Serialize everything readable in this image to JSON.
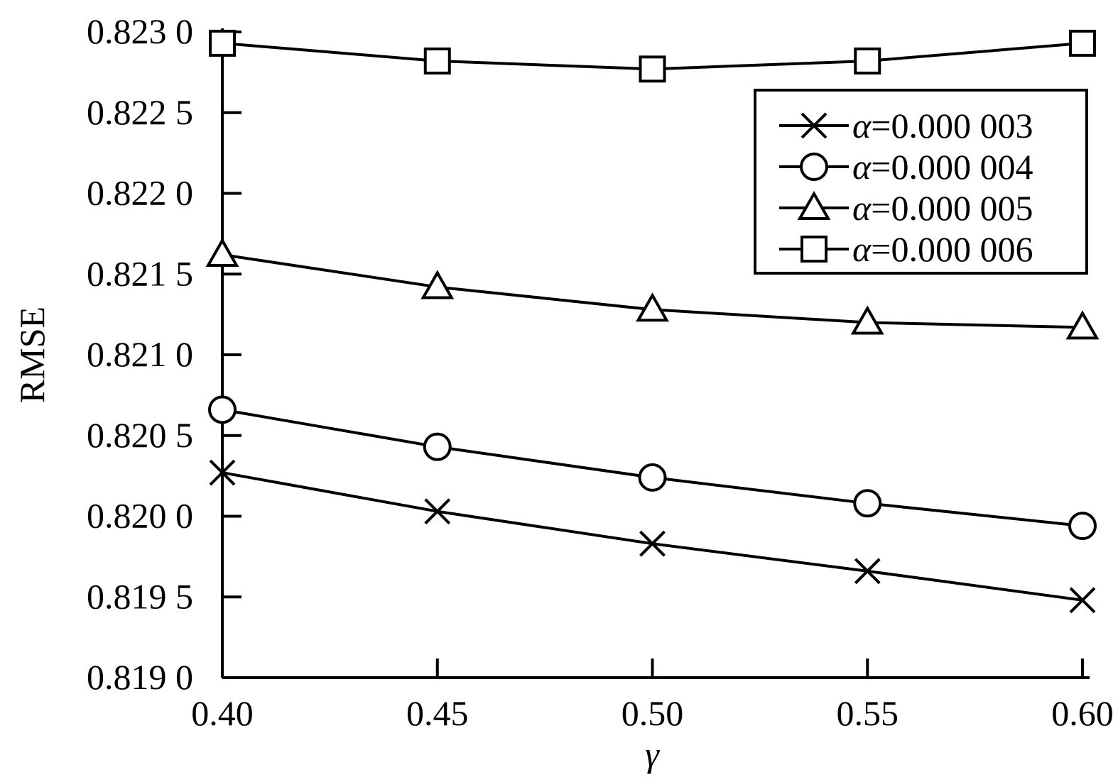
{
  "chart_data": {
    "type": "line",
    "xlabel": "γ",
    "ylabel": "RMSE",
    "xlim": [
      0.4,
      0.6
    ],
    "ylim": [
      0.819,
      0.823
    ],
    "x": [
      0.4,
      0.45,
      0.5,
      0.55,
      0.6
    ],
    "x_tick_labels": [
      "0.40",
      "0.45",
      "0.50",
      "0.55",
      "0.60"
    ],
    "y_ticks": [
      0.819,
      0.8195,
      0.82,
      0.8205,
      0.821,
      0.8215,
      0.822,
      0.8225,
      0.823
    ],
    "y_tick_labels": [
      "0.819 0",
      "0.819 5",
      "0.820 0",
      "0.820 5",
      "0.821 0",
      "0.821 5",
      "0.822 0",
      "0.822 5",
      "0.823 0"
    ],
    "grid": false,
    "legend_position": "top-right",
    "series": [
      {
        "name": "α=0.000 003",
        "symbol": "α",
        "value_text": "=0.000 003",
        "marker": "x",
        "values": [
          0.82027,
          0.82003,
          0.81983,
          0.81966,
          0.81948
        ]
      },
      {
        "name": "α=0.000 004",
        "symbol": "α",
        "value_text": "=0.000 004",
        "marker": "circle",
        "values": [
          0.82066,
          0.82043,
          0.82024,
          0.82008,
          0.81994
        ]
      },
      {
        "name": "α=0.000 005",
        "symbol": "α",
        "value_text": "=0.000 005",
        "marker": "triangle",
        "values": [
          0.82162,
          0.82142,
          0.82128,
          0.8212,
          0.82117
        ]
      },
      {
        "name": "α=0.000 006",
        "symbol": "α",
        "value_text": "=0.000 006",
        "marker": "square",
        "values": [
          0.82293,
          0.82282,
          0.82277,
          0.82282,
          0.82293
        ]
      }
    ]
  }
}
